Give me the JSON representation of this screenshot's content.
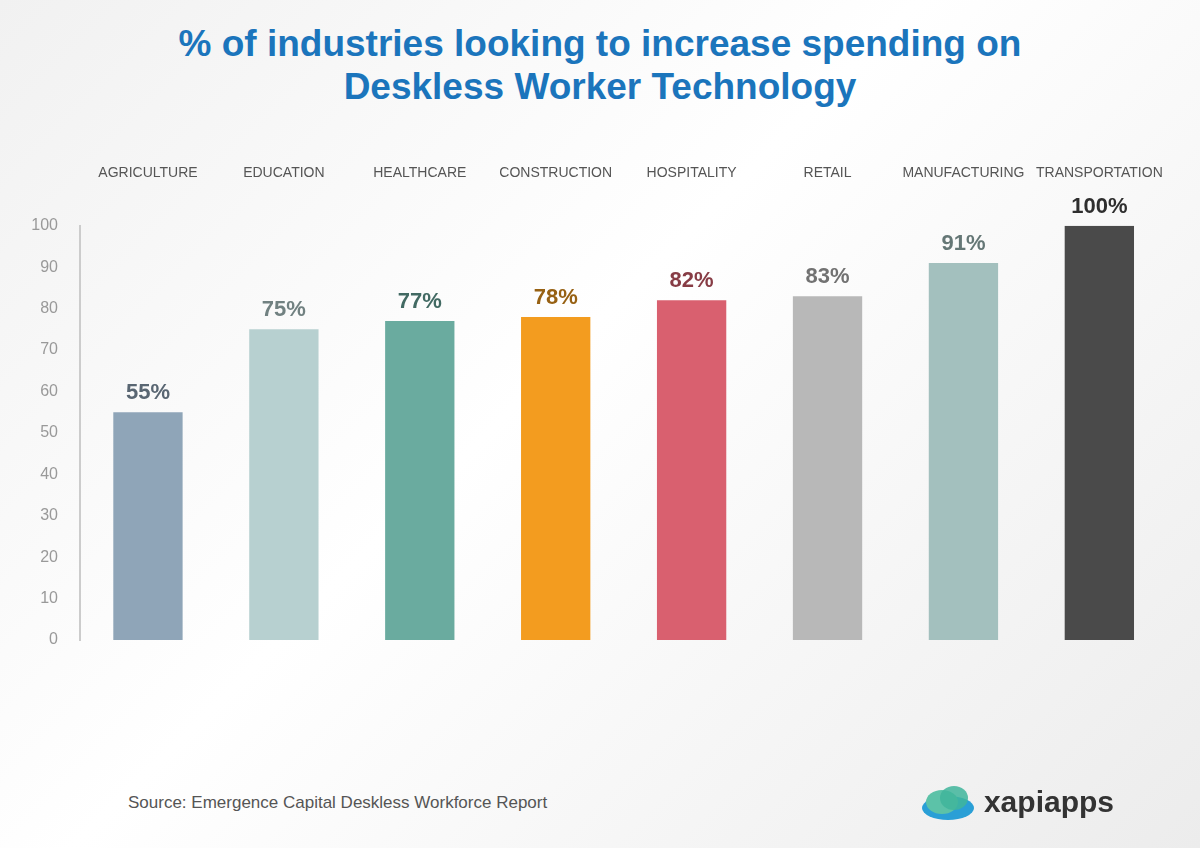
{
  "chart_data": {
    "type": "bar",
    "title": "% of industries looking to increase spending on Deskless Worker Technology",
    "categories": [
      "AGRICULTURE",
      "EDUCATION",
      "HEALTHCARE",
      "CONSTRUCTION",
      "HOSPITALITY",
      "RETAIL",
      "MANUFACTURING",
      "TRANSPORTATION"
    ],
    "values": [
      55,
      75,
      77,
      78,
      82,
      83,
      91,
      100
    ],
    "value_labels": [
      "55%",
      "75%",
      "77%",
      "78%",
      "82%",
      "83%",
      "91%",
      "100%"
    ],
    "colors": [
      "#8fa5b8",
      "#b7d0d0",
      "#6aab9f",
      "#f39c1f",
      "#d9606f",
      "#b8b8b8",
      "#a3c0be",
      "#4a4a4a"
    ],
    "ylim": [
      0,
      100
    ],
    "yticks": [
      0,
      10,
      20,
      30,
      40,
      50,
      60,
      70,
      80,
      90,
      100
    ],
    "grid": false,
    "data_labels": true,
    "annotations": [
      "Source: Emergence Capital Deskless Workforce Report",
      "xapiapps"
    ]
  }
}
